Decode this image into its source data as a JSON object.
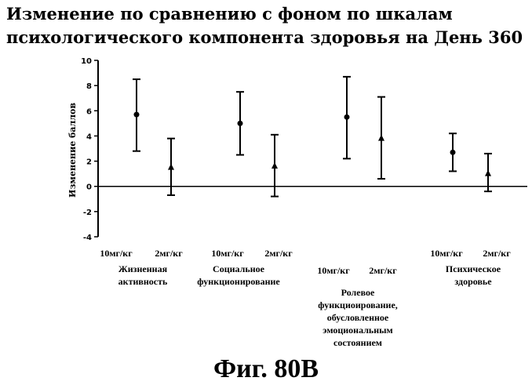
{
  "title_lines": [
    "Изменение по сравнению с фоном  по шкалам",
    "психологического  компонента здоровья на День 360"
  ],
  "caption": "Фиг. 80В",
  "chart_data": {
    "type": "scatter",
    "title": "Изменение по сравнению с фоном  по шкалам психологического  компонента здоровья на День 360",
    "ylabel": "Изменение баллов",
    "xlabel": "",
    "ylim": [
      -4,
      10
    ],
    "yticks": [
      -4,
      -2,
      0,
      2,
      4,
      6,
      8,
      10
    ],
    "grid": false,
    "legend": "none",
    "categories": [
      {
        "name": "Жизненная\nактивность",
        "doses": [
          {
            "label": "10мг/кг",
            "marker": "circle",
            "mean": 5.7,
            "low": 2.8,
            "high": 8.5
          },
          {
            "label": "2мг/кг",
            "marker": "triangle",
            "mean": 1.5,
            "low": -0.7,
            "high": 3.8
          }
        ]
      },
      {
        "name": "Социальное\nфункционирование",
        "doses": [
          {
            "label": "10мг/кг",
            "marker": "circle",
            "mean": 5.0,
            "low": 2.5,
            "high": 7.5
          },
          {
            "label": "2мг/кг",
            "marker": "triangle",
            "mean": 1.6,
            "low": -0.8,
            "high": 4.1
          }
        ]
      },
      {
        "name": "Ролевое\nфункциоирование,\nобусловленное\nэмоциональным\nсостоянием",
        "doses": [
          {
            "label": "10мг/кг",
            "marker": "circle",
            "mean": 5.5,
            "low": 2.2,
            "high": 8.7
          },
          {
            "label": "2мг/кг",
            "marker": "triangle",
            "mean": 3.8,
            "low": 0.6,
            "high": 7.1
          }
        ]
      },
      {
        "name": "Психическое\nздоровье",
        "doses": [
          {
            "label": "10мг/кг",
            "marker": "circle",
            "mean": 2.7,
            "low": 1.2,
            "high": 4.2
          },
          {
            "label": "2мг/кг",
            "marker": "triangle",
            "mean": 1.0,
            "low": -0.4,
            "high": 2.6
          }
        ]
      }
    ]
  }
}
